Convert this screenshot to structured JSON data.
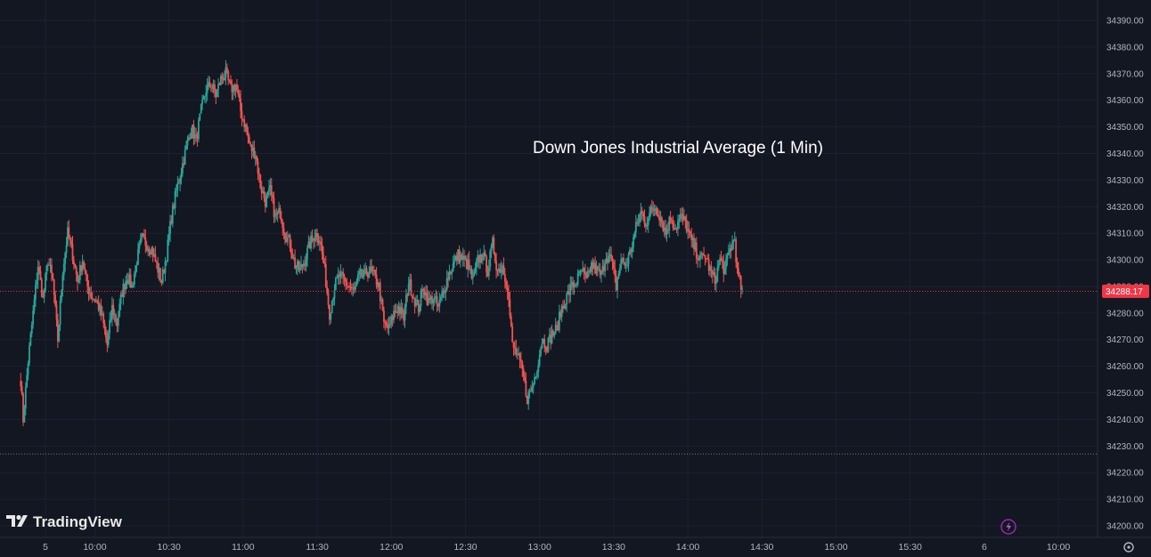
{
  "chart_data": {
    "type": "candlestick",
    "title": "Down Jones Industrial Average (1 Min)",
    "ylim": [
      34200,
      34390
    ],
    "y_ticks": [
      34390,
      34380,
      34370,
      34360,
      34350,
      34340,
      34330,
      34320,
      34310,
      34300,
      34290,
      34280,
      34270,
      34260,
      34250,
      34240,
      34230,
      34220,
      34210,
      34200
    ],
    "y_tick_labels": [
      "34390.00",
      "34380.00",
      "34370.00",
      "34360.00",
      "34350.00",
      "34340.00",
      "34330.00",
      "34320.00",
      "34310.00",
      "34300.00",
      "34290.00",
      "34280.00",
      "34270.00",
      "34260.00",
      "34250.00",
      "34240.00",
      "34230.00",
      "34220.00",
      "34210.00",
      "34200.00"
    ],
    "x_range_minutes": [
      565,
      1215
    ],
    "x_ticks": [
      {
        "label": "5",
        "minute": 580
      },
      {
        "label": "10:00",
        "minute": 600
      },
      {
        "label": "10:30",
        "minute": 630
      },
      {
        "label": "11:00",
        "minute": 660
      },
      {
        "label": "11:30",
        "minute": 690
      },
      {
        "label": "12:00",
        "minute": 720
      },
      {
        "label": "12:30",
        "minute": 750
      },
      {
        "label": "13:00",
        "minute": 780
      },
      {
        "label": "13:30",
        "minute": 810
      },
      {
        "label": "14:00",
        "minute": 840
      },
      {
        "label": "14:30",
        "minute": 870
      },
      {
        "label": "15:00",
        "minute": 900
      },
      {
        "label": "15:30",
        "minute": 930
      },
      {
        "label": "6",
        "minute": 960
      },
      {
        "label": "10:00",
        "minute": 990
      }
    ],
    "last_price": 34288.17,
    "last_price_label": "34288.17",
    "low_marker": 34227,
    "up_color": "#26a69a",
    "down_color": "#ef5350",
    "key_points": [
      [
        570,
        34255
      ],
      [
        571,
        34240
      ],
      [
        573,
        34262
      ],
      [
        575,
        34280
      ],
      [
        577,
        34298
      ],
      [
        579,
        34285
      ],
      [
        581,
        34300
      ],
      [
        583,
        34292
      ],
      [
        585,
        34270
      ],
      [
        587,
        34296
      ],
      [
        589,
        34310
      ],
      [
        591,
        34302
      ],
      [
        593,
        34292
      ],
      [
        595,
        34300
      ],
      [
        597,
        34290
      ],
      [
        599,
        34286
      ],
      [
        601,
        34284
      ],
      [
        603,
        34278
      ],
      [
        605,
        34268
      ],
      [
        607,
        34282
      ],
      [
        609,
        34276
      ],
      [
        611,
        34288
      ],
      [
        613,
        34294
      ],
      [
        615,
        34290
      ],
      [
        617,
        34300
      ],
      [
        619,
        34308
      ],
      [
        621,
        34306
      ],
      [
        623,
        34304
      ],
      [
        625,
        34298
      ],
      [
        627,
        34292
      ],
      [
        629,
        34302
      ],
      [
        631,
        34316
      ],
      [
        633,
        34326
      ],
      [
        635,
        34334
      ],
      [
        637,
        34342
      ],
      [
        639,
        34350
      ],
      [
        641,
        34345
      ],
      [
        643,
        34356
      ],
      [
        645,
        34364
      ],
      [
        647,
        34366
      ],
      [
        649,
        34362
      ],
      [
        651,
        34368
      ],
      [
        653,
        34370
      ],
      [
        655,
        34364
      ],
      [
        657,
        34366
      ],
      [
        659,
        34356
      ],
      [
        661,
        34350
      ],
      [
        663,
        34342
      ],
      [
        665,
        34340
      ],
      [
        667,
        34328
      ],
      [
        669,
        34322
      ],
      [
        671,
        34326
      ],
      [
        673,
        34316
      ],
      [
        675,
        34318
      ],
      [
        677,
        34310
      ],
      [
        679,
        34306
      ],
      [
        681,
        34298
      ],
      [
        683,
        34296
      ],
      [
        685,
        34300
      ],
      [
        687,
        34306
      ],
      [
        689,
        34310
      ],
      [
        691,
        34308
      ],
      [
        693,
        34296
      ],
      [
        695,
        34280
      ],
      [
        697,
        34290
      ],
      [
        699,
        34294
      ],
      [
        701,
        34292
      ],
      [
        703,
        34290
      ],
      [
        705,
        34288
      ],
      [
        707,
        34294
      ],
      [
        709,
        34294
      ],
      [
        711,
        34296
      ],
      [
        713,
        34294
      ],
      [
        715,
        34290
      ],
      [
        717,
        34276
      ],
      [
        719,
        34274
      ],
      [
        721,
        34280
      ],
      [
        723,
        34282
      ],
      [
        725,
        34278
      ],
      [
        727,
        34292
      ],
      [
        729,
        34286
      ],
      [
        731,
        34282
      ],
      [
        733,
        34290
      ],
      [
        735,
        34284
      ],
      [
        737,
        34286
      ],
      [
        739,
        34282
      ],
      [
        741,
        34288
      ],
      [
        743,
        34294
      ],
      [
        745,
        34298
      ],
      [
        747,
        34302
      ],
      [
        749,
        34300
      ],
      [
        751,
        34298
      ],
      [
        753,
        34292
      ],
      [
        755,
        34300
      ],
      [
        757,
        34302
      ],
      [
        759,
        34296
      ],
      [
        761,
        34306
      ],
      [
        763,
        34296
      ],
      [
        765,
        34298
      ],
      [
        767,
        34290
      ],
      [
        769,
        34268
      ],
      [
        771,
        34264
      ],
      [
        773,
        34258
      ],
      [
        775,
        34248
      ],
      [
        777,
        34252
      ],
      [
        779,
        34260
      ],
      [
        781,
        34270
      ],
      [
        783,
        34268
      ],
      [
        785,
        34272
      ],
      [
        787,
        34274
      ],
      [
        789,
        34282
      ],
      [
        791,
        34286
      ],
      [
        793,
        34290
      ],
      [
        795,
        34292
      ],
      [
        797,
        34296
      ],
      [
        799,
        34292
      ],
      [
        801,
        34298
      ],
      [
        803,
        34296
      ],
      [
        805,
        34294
      ],
      [
        807,
        34302
      ],
      [
        809,
        34300
      ],
      [
        811,
        34290
      ],
      [
        813,
        34300
      ],
      [
        815,
        34298
      ],
      [
        817,
        34304
      ],
      [
        819,
        34312
      ],
      [
        821,
        34318
      ],
      [
        823,
        34314
      ],
      [
        825,
        34318
      ],
      [
        827,
        34320
      ],
      [
        829,
        34316
      ],
      [
        831,
        34310
      ],
      [
        833,
        34316
      ],
      [
        835,
        34312
      ],
      [
        837,
        34316
      ],
      [
        839,
        34314
      ],
      [
        841,
        34308
      ],
      [
        843,
        34304
      ],
      [
        845,
        34300
      ],
      [
        847,
        34302
      ],
      [
        849,
        34296
      ],
      [
        851,
        34292
      ],
      [
        853,
        34300
      ],
      [
        855,
        34296
      ],
      [
        857,
        34304
      ],
      [
        859,
        34308
      ],
      [
        860,
        34295
      ],
      [
        862,
        34288
      ]
    ]
  }
}
